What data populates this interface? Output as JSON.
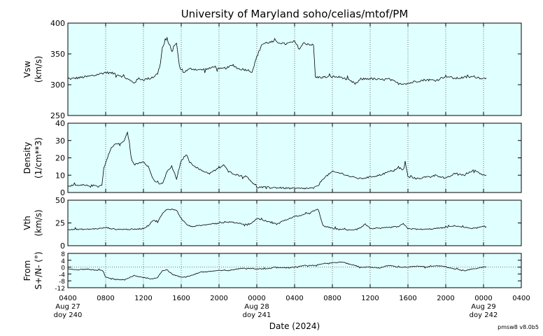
{
  "title": "University of Maryland  soho/celias/mtof/PM",
  "footer_version": "pmsw8 v8.0b5",
  "colors": {
    "panel_bg": "#e0ffff",
    "line": "#000000",
    "grid": "#555555"
  },
  "chart_data": {
    "type": "line",
    "xlabel": "Date (2024)",
    "x_range_hours": [
      0,
      48
    ],
    "x_ticks": [
      {
        "h": 0,
        "label": "0400",
        "date": "Aug 27",
        "doy": "doy 240"
      },
      {
        "h": 4,
        "label": "0800"
      },
      {
        "h": 8,
        "label": "1200"
      },
      {
        "h": 12,
        "label": "1600"
      },
      {
        "h": 16,
        "label": "2000"
      },
      {
        "h": 20,
        "label": "0000",
        "date": "Aug 28",
        "doy": "doy 241"
      },
      {
        "h": 24,
        "label": "0400"
      },
      {
        "h": 28,
        "label": "0800"
      },
      {
        "h": 32,
        "label": "1200"
      },
      {
        "h": 36,
        "label": "1600"
      },
      {
        "h": 40,
        "label": "2000"
      },
      {
        "h": 44,
        "label": "0000",
        "date": "Aug 29",
        "doy": "doy 242"
      },
      {
        "h": 48,
        "label": "0400"
      }
    ],
    "panels": [
      {
        "id": "vsw",
        "ylabel": "Vsw",
        "yunit": "(km/s)",
        "ylim": [
          250,
          400
        ],
        "yticks": [
          250,
          300,
          350,
          400
        ],
        "ref_line": null,
        "points": [
          [
            0,
            309
          ],
          [
            1,
            311
          ],
          [
            2,
            313
          ],
          [
            3,
            316
          ],
          [
            4,
            320
          ],
          [
            5,
            318
          ],
          [
            6,
            312
          ],
          [
            7,
            303
          ],
          [
            7.5,
            310
          ],
          [
            8,
            308
          ],
          [
            9,
            312
          ],
          [
            9.5,
            318
          ],
          [
            9.8,
            335
          ],
          [
            10,
            360
          ],
          [
            10.5,
            375
          ],
          [
            11,
            355
          ],
          [
            11.5,
            368
          ],
          [
            11.8,
            330
          ],
          [
            12.2,
            320
          ],
          [
            13,
            326
          ],
          [
            14,
            324
          ],
          [
            15,
            326
          ],
          [
            15.5,
            330
          ],
          [
            16,
            325
          ],
          [
            17,
            328
          ],
          [
            17.5,
            332
          ],
          [
            18,
            326
          ],
          [
            19,
            324
          ],
          [
            19.5,
            321
          ],
          [
            20,
            345
          ],
          [
            20.5,
            365
          ],
          [
            21,
            368
          ],
          [
            22,
            370
          ],
          [
            23,
            366
          ],
          [
            24,
            370
          ],
          [
            24.5,
            358
          ],
          [
            25,
            368
          ],
          [
            26,
            364
          ],
          [
            26.2,
            312
          ],
          [
            27,
            312
          ],
          [
            28,
            313
          ],
          [
            29,
            312
          ],
          [
            30,
            305
          ],
          [
            30.5,
            301
          ],
          [
            31,
            309
          ],
          [
            32,
            310
          ],
          [
            33,
            308
          ],
          [
            34,
            309
          ],
          [
            35,
            302
          ],
          [
            36,
            302
          ],
          [
            37,
            306
          ],
          [
            38,
            308
          ],
          [
            39,
            307
          ],
          [
            40,
            314
          ],
          [
            41,
            310
          ],
          [
            42,
            312
          ],
          [
            43,
            313
          ],
          [
            44,
            310
          ],
          [
            44.3,
            311
          ]
        ]
      },
      {
        "id": "density",
        "ylabel": "Density",
        "yunit": "(1/cm**3)",
        "ylim": [
          0,
          40
        ],
        "yticks": [
          0,
          10,
          20,
          30,
          40
        ],
        "ref_line": null,
        "points": [
          [
            0,
            4
          ],
          [
            2,
            4
          ],
          [
            3.6,
            4
          ],
          [
            3.8,
            14
          ],
          [
            4,
            17
          ],
          [
            4.5,
            25
          ],
          [
            5,
            28
          ],
          [
            5.5,
            28
          ],
          [
            6,
            30
          ],
          [
            6.3,
            35
          ],
          [
            6.5,
            29
          ],
          [
            6.7,
            20
          ],
          [
            7,
            16
          ],
          [
            8,
            18
          ],
          [
            8.5,
            15
          ],
          [
            9,
            8
          ],
          [
            9.5,
            5
          ],
          [
            10,
            5
          ],
          [
            10.5,
            12
          ],
          [
            11,
            15
          ],
          [
            11.5,
            8
          ],
          [
            12,
            18
          ],
          [
            12.5,
            22
          ],
          [
            13,
            17
          ],
          [
            13.5,
            15
          ],
          [
            14,
            13
          ],
          [
            15,
            11
          ],
          [
            16,
            14
          ],
          [
            16.5,
            16
          ],
          [
            17,
            12
          ],
          [
            18,
            10
          ],
          [
            19,
            9
          ],
          [
            19.5,
            6
          ],
          [
            20,
            3
          ],
          [
            21,
            3
          ],
          [
            22,
            2.8
          ],
          [
            23,
            2.5
          ],
          [
            24,
            2.3
          ],
          [
            25,
            2.3
          ],
          [
            26,
            2.5
          ],
          [
            26.5,
            4
          ],
          [
            27,
            8
          ],
          [
            28,
            12
          ],
          [
            29,
            11
          ],
          [
            30,
            9
          ],
          [
            31,
            8
          ],
          [
            32,
            9
          ],
          [
            33,
            10
          ],
          [
            34,
            12
          ],
          [
            35,
            14
          ],
          [
            35.5,
            13
          ],
          [
            35.7,
            18
          ],
          [
            36,
            9
          ],
          [
            37,
            8
          ],
          [
            38,
            9
          ],
          [
            39,
            10
          ],
          [
            40,
            8
          ],
          [
            41,
            11
          ],
          [
            42,
            10
          ],
          [
            43,
            13
          ],
          [
            44,
            10
          ],
          [
            44.3,
            10
          ]
        ]
      },
      {
        "id": "vth",
        "ylabel": "Vth",
        "yunit": "(km/s)",
        "ylim": [
          0,
          50
        ],
        "yticks": [
          0,
          25,
          50
        ],
        "ref_line": null,
        "points": [
          [
            0,
            18
          ],
          [
            2,
            18
          ],
          [
            3.5,
            19
          ],
          [
            4,
            20
          ],
          [
            5,
            18
          ],
          [
            6,
            18
          ],
          [
            7,
            18
          ],
          [
            8,
            19
          ],
          [
            8.5,
            22
          ],
          [
            9,
            28
          ],
          [
            9.5,
            26
          ],
          [
            10,
            35
          ],
          [
            10.5,
            40
          ],
          [
            11,
            40
          ],
          [
            11.5,
            39
          ],
          [
            12,
            30
          ],
          [
            12.5,
            24
          ],
          [
            13,
            21
          ],
          [
            14,
            22
          ],
          [
            15,
            24
          ],
          [
            16,
            25
          ],
          [
            17,
            26
          ],
          [
            18,
            25
          ],
          [
            19,
            23
          ],
          [
            19.5,
            25
          ],
          [
            20,
            30
          ],
          [
            21,
            27
          ],
          [
            22,
            24
          ],
          [
            23,
            28
          ],
          [
            24,
            32
          ],
          [
            25,
            34
          ],
          [
            26,
            38
          ],
          [
            26.5,
            40
          ],
          [
            27,
            22
          ],
          [
            28,
            19
          ],
          [
            29,
            18
          ],
          [
            30,
            17
          ],
          [
            31,
            20
          ],
          [
            31.5,
            24
          ],
          [
            32,
            19
          ],
          [
            33,
            19
          ],
          [
            34,
            20
          ],
          [
            35,
            21
          ],
          [
            35.5,
            24
          ],
          [
            36,
            19
          ],
          [
            37,
            18
          ],
          [
            38,
            18
          ],
          [
            39,
            19
          ],
          [
            40,
            20
          ],
          [
            41,
            22
          ],
          [
            42,
            20
          ],
          [
            43,
            19
          ],
          [
            44,
            21
          ],
          [
            44.3,
            21
          ]
        ]
      },
      {
        "id": "flow",
        "ylabel": "From",
        "yunit": "S+/N- (°)",
        "ylim": [
          -12,
          8
        ],
        "yticks": [
          -12,
          -8,
          -4,
          0,
          4,
          8
        ],
        "ref_line": 0,
        "points": [
          [
            0,
            -1
          ],
          [
            1,
            -1.5
          ],
          [
            2,
            -1.2
          ],
          [
            3,
            -1.8
          ],
          [
            3.7,
            -2
          ],
          [
            4,
            -6
          ],
          [
            5,
            -7
          ],
          [
            6,
            -7.5
          ],
          [
            7,
            -5
          ],
          [
            8,
            -6
          ],
          [
            9,
            -7
          ],
          [
            9.5,
            -6
          ],
          [
            10,
            -2
          ],
          [
            10.5,
            -1.5
          ],
          [
            11,
            -4
          ],
          [
            12,
            -6
          ],
          [
            13,
            -5
          ],
          [
            14,
            -3
          ],
          [
            15,
            -2.5
          ],
          [
            16,
            -2
          ],
          [
            17,
            -2
          ],
          [
            18,
            -1
          ],
          [
            19,
            -0.5
          ],
          [
            20,
            -1
          ],
          [
            21,
            -1
          ],
          [
            22,
            0
          ],
          [
            23,
            -0.5
          ],
          [
            24,
            0
          ],
          [
            25,
            1
          ],
          [
            26,
            1
          ],
          [
            27,
            2
          ],
          [
            28,
            2.5
          ],
          [
            29,
            3
          ],
          [
            30,
            1.5
          ],
          [
            31,
            0
          ],
          [
            32,
            0
          ],
          [
            33,
            -0.5
          ],
          [
            34,
            1
          ],
          [
            35,
            0
          ],
          [
            36,
            0
          ],
          [
            37,
            0.5
          ],
          [
            38,
            0
          ],
          [
            39,
            1
          ],
          [
            40,
            0
          ],
          [
            41,
            -1
          ],
          [
            42,
            -2
          ],
          [
            43,
            -1
          ],
          [
            44,
            0
          ],
          [
            44.3,
            0
          ]
        ]
      }
    ]
  }
}
